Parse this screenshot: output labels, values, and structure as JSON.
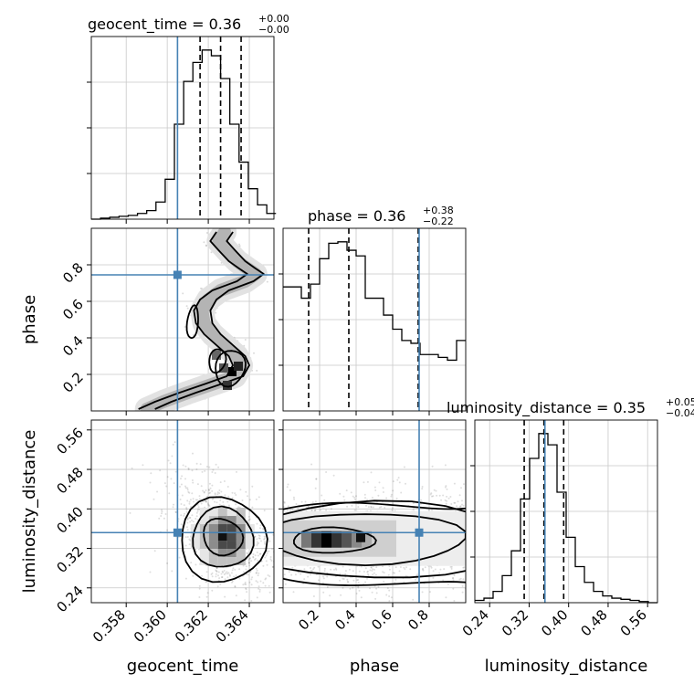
{
  "chart_data": {
    "type": "corner",
    "parameters": [
      "geocent_time",
      "phase",
      "luminosity_distance"
    ],
    "truths": [
      0.3605,
      0.745,
      0.352
    ],
    "ranges": [
      [
        0.3563,
        0.3652
      ],
      [
        0.0,
        1.0
      ],
      [
        0.21,
        0.58
      ]
    ],
    "axis_labels": {
      "x": [
        "geocent_time",
        "phase",
        "luminosity_distance"
      ],
      "y": [
        "phase",
        "luminosity_distance"
      ]
    },
    "titles": [
      {
        "name": "geocent_time",
        "median": "0.36",
        "plus": "+0.00",
        "minus": "−0.00"
      },
      {
        "name": "phase",
        "median": "0.36",
        "plus": "+0.38",
        "minus": "−0.22"
      },
      {
        "name": "luminosity_distance",
        "median": "0.35",
        "plus": "+0.05",
        "minus": "−0.04"
      }
    ],
    "ticks": {
      "geocent_time": [
        "0.358",
        "0.360",
        "0.362",
        "0.364"
      ],
      "phase": [
        "0.2",
        "0.4",
        "0.6",
        "0.8"
      ],
      "luminosity_distance": [
        "0.24",
        "0.32",
        "0.40",
        "0.48",
        "0.56"
      ]
    },
    "histograms": [
      {
        "parameter": "geocent_time",
        "bin_edges": [
          0.3563,
          0.35675,
          0.3572,
          0.35765,
          0.3581,
          0.35855,
          0.359,
          0.35945,
          0.3599,
          0.36035,
          0.3608,
          0.36125,
          0.3617,
          0.36215,
          0.3626,
          0.36305,
          0.3635,
          0.36395,
          0.3644,
          0.36485,
          0.3653
        ],
        "counts": [
          0,
          1,
          2,
          3,
          4,
          6,
          9,
          18,
          42,
          100,
          145,
          165,
          178,
          172,
          148,
          100,
          60,
          32,
          15,
          6
        ],
        "quantiles": [
          0.3616,
          0.3626,
          0.3636
        ]
      },
      {
        "parameter": "phase",
        "bin_edges": [
          0.0,
          0.05,
          0.1,
          0.15,
          0.2,
          0.25,
          0.3,
          0.35,
          0.4,
          0.45,
          0.5,
          0.55,
          0.6,
          0.65,
          0.7,
          0.75,
          0.8,
          0.85,
          0.9,
          0.95,
          1.0
        ],
        "counts": [
          88,
          88,
          80,
          90,
          108,
          119,
          120,
          114,
          110,
          80,
          80,
          68,
          58,
          50,
          48,
          40,
          40,
          38,
          36,
          50
        ],
        "quantiles": [
          0.14,
          0.36,
          0.74
        ]
      },
      {
        "parameter": "luminosity_distance",
        "bin_edges": [
          0.21,
          0.2285,
          0.247,
          0.2655,
          0.284,
          0.3025,
          0.321,
          0.3395,
          0.358,
          0.3765,
          0.395,
          0.4135,
          0.432,
          0.4505,
          0.469,
          0.4875,
          0.506,
          0.5245,
          0.543,
          0.5615,
          0.58
        ],
        "counts": [
          2,
          4,
          10,
          24,
          46,
          92,
          128,
          150,
          140,
          98,
          58,
          32,
          18,
          10,
          6,
          4,
          3,
          2,
          1,
          0
        ],
        "quantiles": [
          0.31,
          0.35,
          0.39
        ]
      }
    ],
    "density_panels": [
      {
        "x": "geocent_time",
        "y": "phase",
        "ridge": [
          [
            0.3628,
            0.98
          ],
          [
            0.3625,
            0.93
          ],
          [
            0.3629,
            0.88
          ],
          [
            0.3634,
            0.82
          ],
          [
            0.3639,
            0.78
          ],
          [
            0.3643,
            0.75
          ],
          [
            0.3638,
            0.71
          ],
          [
            0.3626,
            0.66
          ],
          [
            0.362,
            0.61
          ],
          [
            0.3617,
            0.55
          ],
          [
            0.3618,
            0.48
          ],
          [
            0.3622,
            0.42
          ],
          [
            0.3628,
            0.36
          ],
          [
            0.3634,
            0.3
          ],
          [
            0.3636,
            0.25
          ],
          [
            0.3633,
            0.19
          ],
          [
            0.3623,
            0.15
          ],
          [
            0.361,
            0.1
          ],
          [
            0.3598,
            0.05
          ],
          [
            0.359,
            0.01
          ]
        ]
      },
      {
        "x": "geocent_time",
        "y": "luminosity_distance",
        "center": [
          0.3627,
          0.345
        ],
        "spread": [
          0.0011,
          0.045
        ]
      },
      {
        "x": "phase",
        "y": "luminosity_distance",
        "center": [
          0.3,
          0.34
        ],
        "spread": [
          0.35,
          0.04
        ]
      }
    ]
  }
}
